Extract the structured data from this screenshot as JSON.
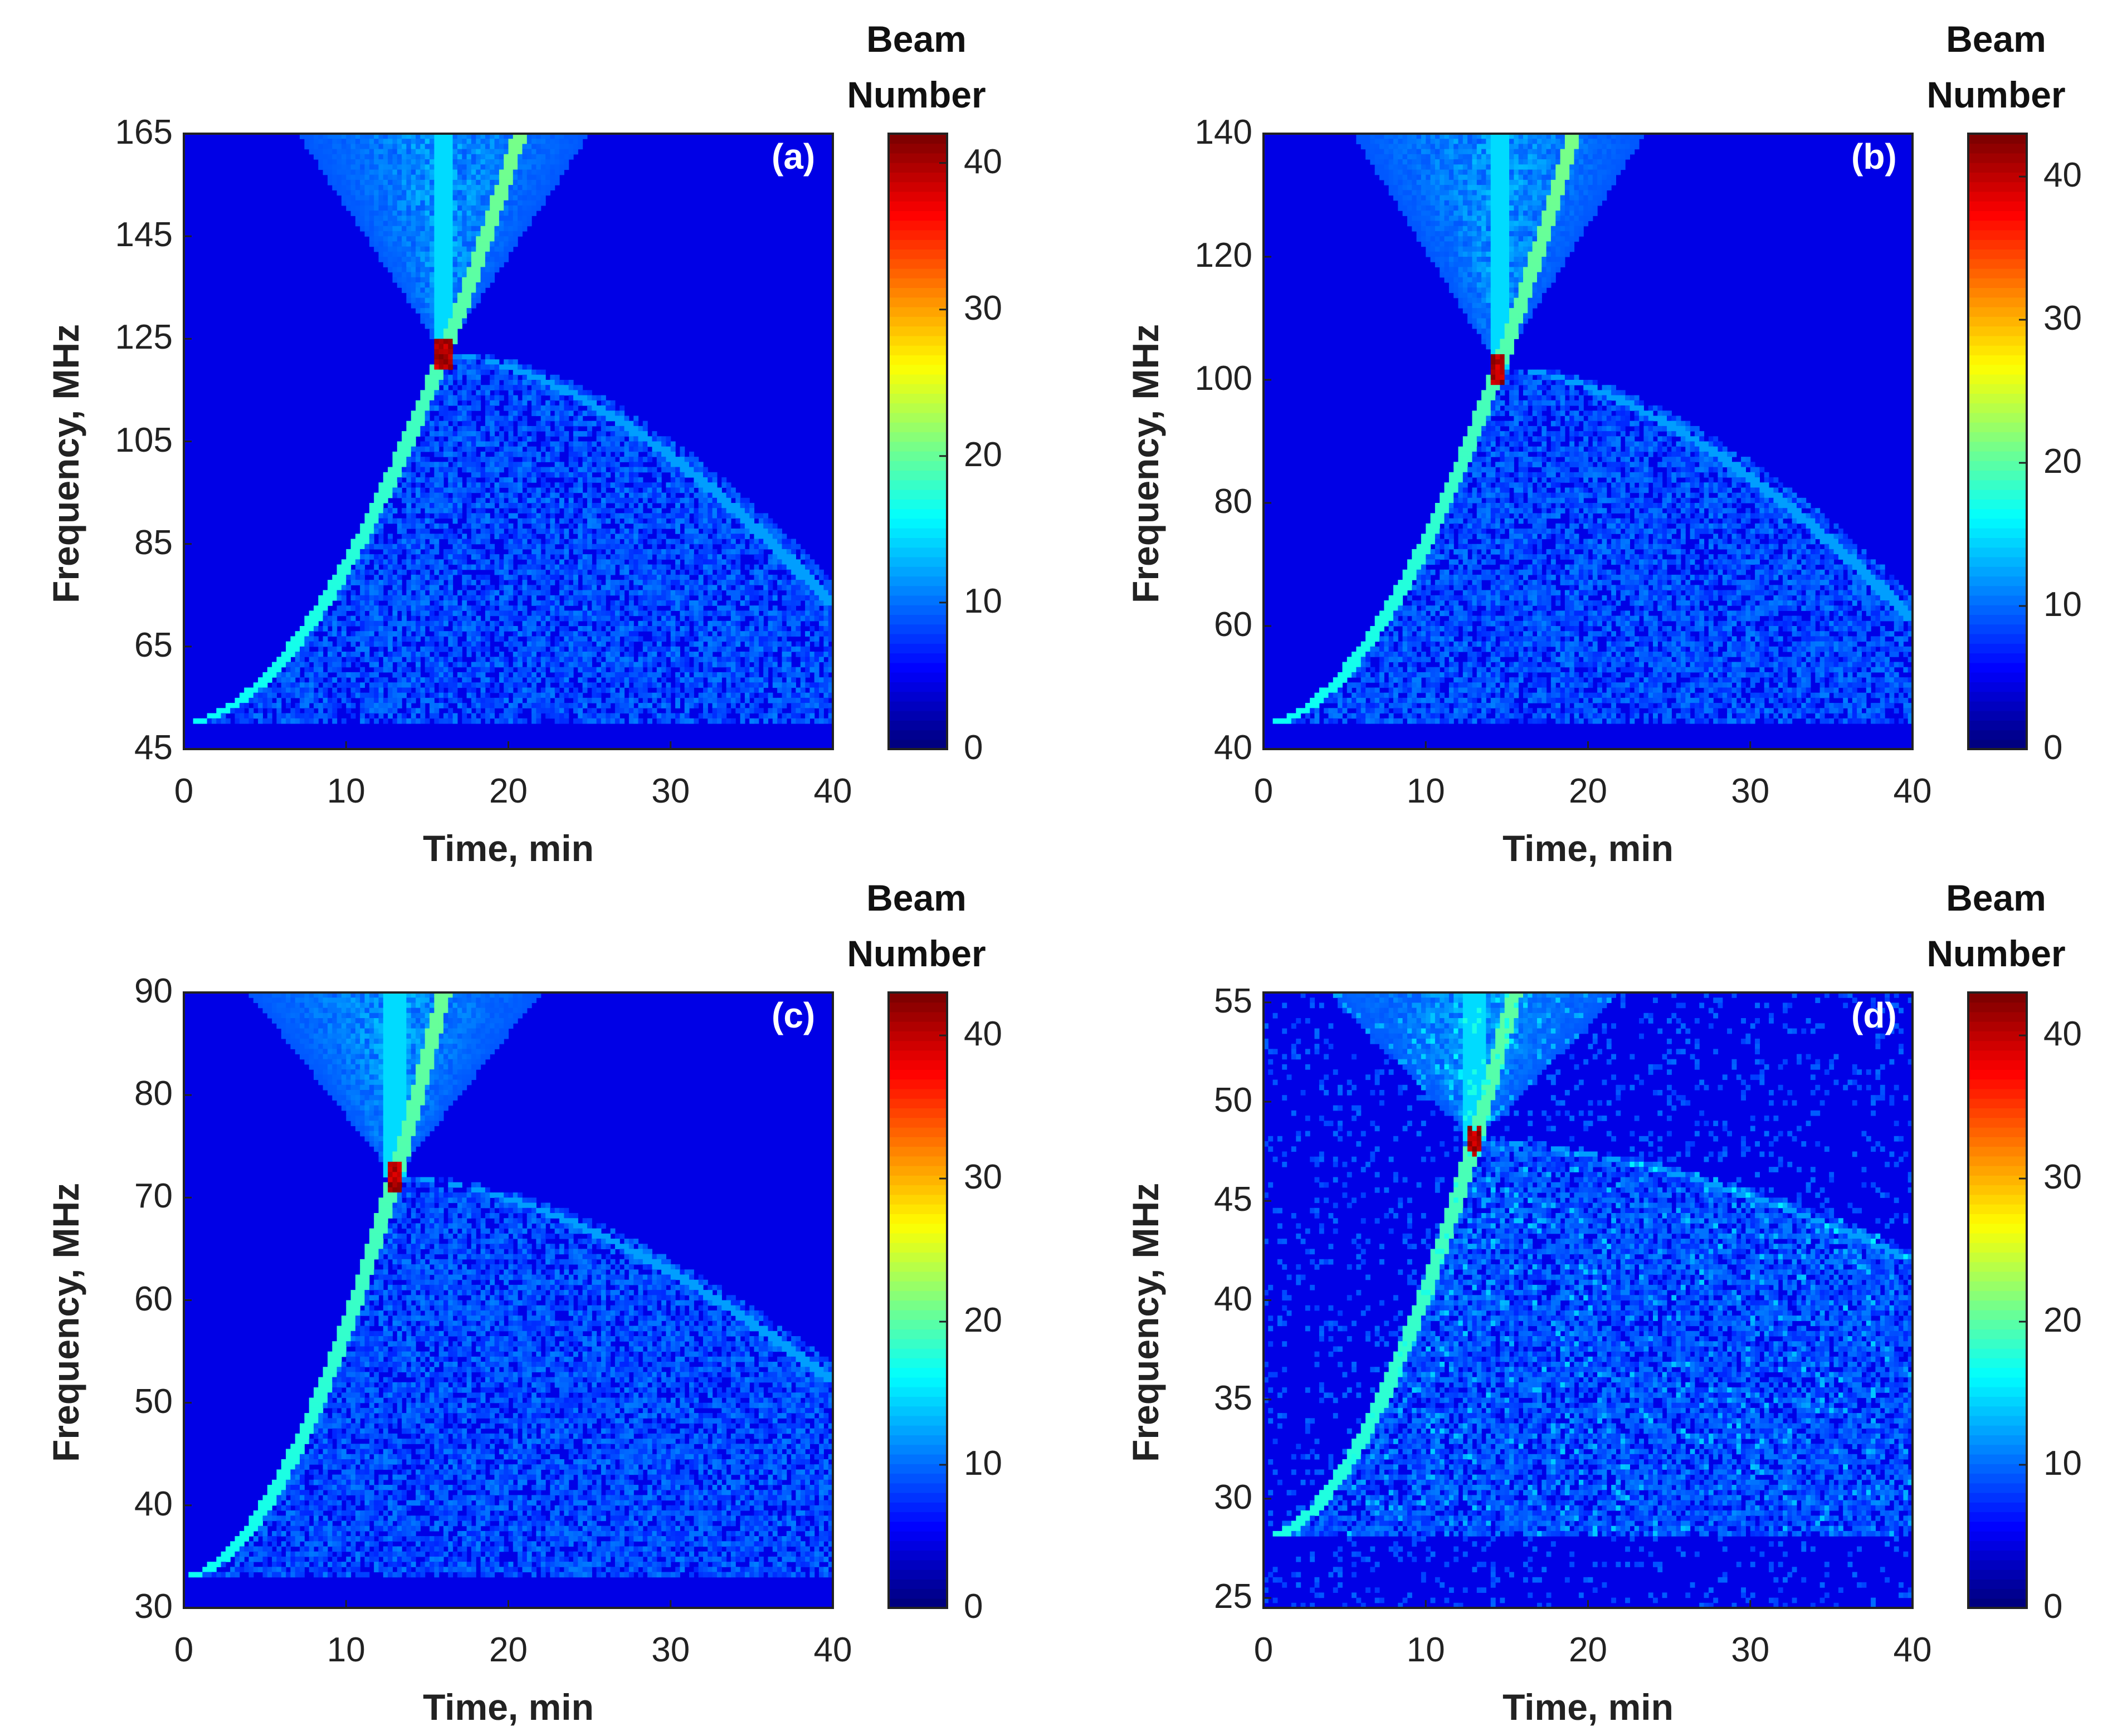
{
  "chart_data": [
    {
      "type": "heatmap",
      "panel_label": "(a)",
      "xlabel": "Time, min",
      "ylabel": "Frequency, MHz",
      "xlim": [
        0,
        40
      ],
      "ylim": [
        45,
        165
      ],
      "xticks": [
        "0",
        "10",
        "20",
        "30",
        "40"
      ],
      "yticks": [
        "45",
        "65",
        "85",
        "105",
        "125",
        "145",
        "165"
      ],
      "colorbar": {
        "title_line1": "Beam",
        "title_line2": "Number",
        "range": [
          0,
          42
        ],
        "ticks": [
          "0",
          "10",
          "20",
          "30",
          "40"
        ],
        "colormap": "jet"
      },
      "features": {
        "vertex_time_min": 16,
        "vertex_freq_mhz": 122,
        "lower_branch_start_freq_mhz": 50,
        "upper_branch_end_freq_mhz": 73,
        "peak_value": 42
      }
    },
    {
      "type": "heatmap",
      "panel_label": "(b)",
      "xlabel": "Time, min",
      "ylabel": "Frequency, MHz",
      "xlim": [
        0,
        40
      ],
      "ylim": [
        40,
        140
      ],
      "xticks": [
        "0",
        "10",
        "20",
        "30",
        "40"
      ],
      "yticks": [
        "40",
        "60",
        "80",
        "100",
        "120",
        "140"
      ],
      "colorbar": {
        "title_line1": "Beam",
        "title_line2": "Number",
        "range": [
          0,
          43
        ],
        "ticks": [
          "0",
          "10",
          "20",
          "30",
          "40"
        ],
        "colormap": "jet"
      },
      "features": {
        "vertex_time_min": 14.5,
        "vertex_freq_mhz": 102,
        "lower_branch_start_freq_mhz": 44,
        "upper_branch_end_freq_mhz": 61,
        "peak_value": 43
      }
    },
    {
      "type": "heatmap",
      "panel_label": "(c)",
      "xlabel": "Time, min",
      "ylabel": "Frequency, MHz",
      "xlim": [
        0,
        40
      ],
      "ylim": [
        30,
        90
      ],
      "xticks": [
        "0",
        "10",
        "20",
        "30",
        "40"
      ],
      "yticks": [
        "30",
        "40",
        "50",
        "60",
        "70",
        "80",
        "90"
      ],
      "colorbar": {
        "title_line1": "Beam",
        "title_line2": "Number",
        "range": [
          0,
          43
        ],
        "ticks": [
          "0",
          "10",
          "20",
          "30",
          "40"
        ],
        "colormap": "jet"
      },
      "features": {
        "vertex_time_min": 13,
        "vertex_freq_mhz": 72,
        "lower_branch_start_freq_mhz": 33,
        "upper_branch_end_freq_mhz": 52,
        "peak_value": 43
      }
    },
    {
      "type": "heatmap",
      "panel_label": "(d)",
      "xlabel": "Time, min",
      "ylabel": "Frequency, MHz",
      "xlim": [
        0,
        40
      ],
      "ylim": [
        24.5,
        55.5
      ],
      "xticks": [
        "0",
        "10",
        "20",
        "30",
        "40"
      ],
      "yticks": [
        "25",
        "30",
        "35",
        "40",
        "45",
        "50",
        "55"
      ],
      "colorbar": {
        "title_line1": "Beam",
        "title_line2": "Number",
        "range": [
          0,
          43
        ],
        "ticks": [
          "0",
          "10",
          "20",
          "30",
          "40"
        ],
        "colormap": "jet"
      },
      "features": {
        "vertex_time_min": 13,
        "vertex_freq_mhz": 48,
        "lower_branch_start_freq_mhz": 28,
        "upper_branch_end_freq_mhz": 42,
        "peak_value": 43
      }
    }
  ]
}
